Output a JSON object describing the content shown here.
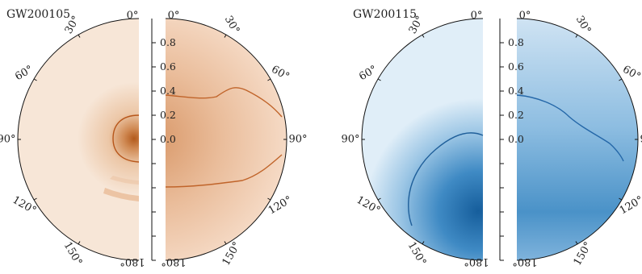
{
  "chart_data": [
    {
      "type": "heatmap",
      "label": "GW200105",
      "color": "#c0642a",
      "colorLight": "#f7e3d2",
      "angle_ticks": [
        "0°",
        "30°",
        "60°",
        "90°",
        "120°",
        "150°",
        "180°"
      ],
      "radial_ticks": [
        "0.8",
        "0.6",
        "0.4",
        "0.2",
        "0.0"
      ],
      "radial_tick_values": [
        0.8,
        0.6,
        0.4,
        0.2,
        0.0
      ],
      "left_contour_deg": [
        [
          90,
          0.18
        ],
        [
          75,
          0.16
        ],
        [
          60,
          0.18
        ],
        [
          45,
          0.2
        ],
        [
          30,
          0.22
        ]
      ],
      "right_contour_deg": [
        [
          60,
          1.05
        ],
        [
          45,
          1.0
        ],
        [
          30,
          0.9
        ]
      ]
    },
    {
      "type": "heatmap",
      "label": "GW200115",
      "color": "#1f6fb2",
      "colorLight": "#dcebf7",
      "angle_ticks": [
        "0°",
        "30°",
        "60°",
        "90°",
        "120°",
        "150°",
        "180°"
      ],
      "radial_ticks": [
        "0.8",
        "0.6",
        "0.4",
        "0.2",
        "0.0"
      ],
      "radial_tick_values": [
        0.8,
        0.6,
        0.4,
        0.2,
        0.0
      ]
    }
  ]
}
